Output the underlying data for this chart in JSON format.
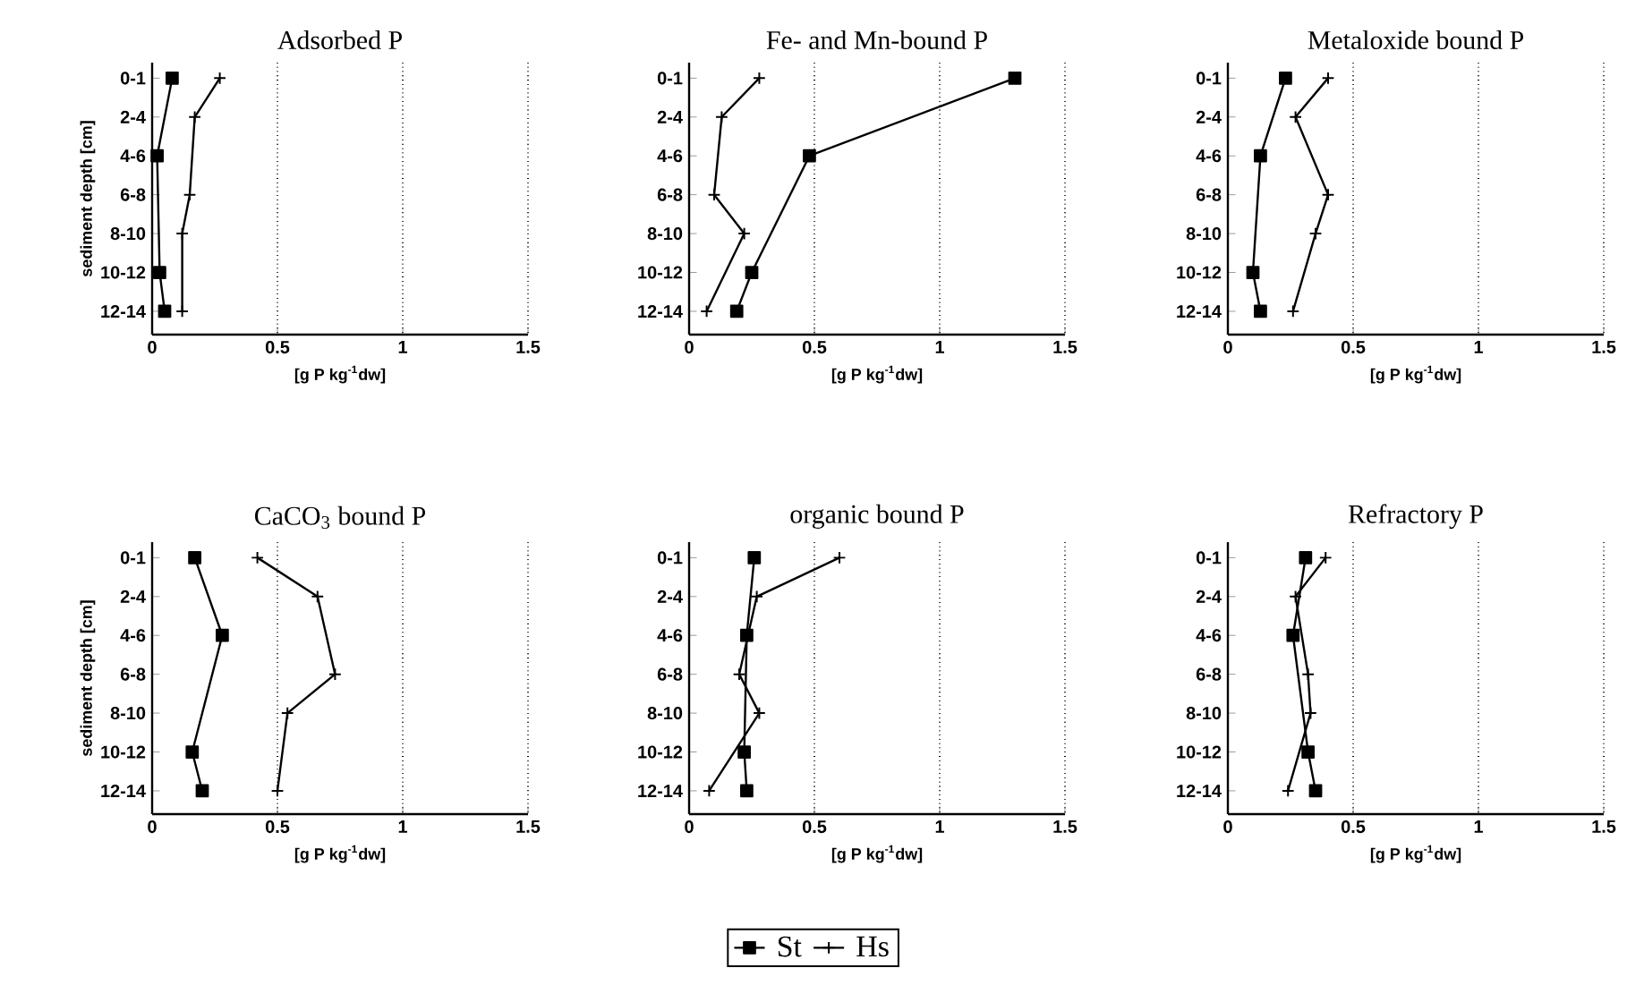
{
  "chart_data": [
    {
      "type": "line",
      "orientation": "horizontal",
      "title": "Adsorbed P",
      "xlabel": "[g P kg$^{-1}$dw]",
      "ylabel": "sediment depth [cm]",
      "categories": [
        "0-1",
        "2-4",
        "4-6",
        "6-8",
        "8-10",
        "10-12",
        "12-14"
      ],
      "xlim": [
        0,
        1.5
      ],
      "xticks": [
        0,
        0.5,
        1,
        1.5
      ],
      "grid": "x",
      "legend": false,
      "series": [
        {
          "color": "#000000",
          "marker": "square",
          "values": [
            0.08,
            null,
            0.02,
            null,
            null,
            0.03,
            0.05
          ]
        },
        {
          "color": "#000000",
          "marker": "cross",
          "values": [
            0.27,
            0.17,
            null,
            0.15,
            0.12,
            null,
            0.12
          ]
        }
      ]
    },
    {
      "type": "line",
      "orientation": "horizontal",
      "title": "Fe- and Mn-bound P",
      "xlabel": "[g P kg$^{-1}$dw]",
      "categories": [
        "0-1",
        "2-4",
        "4-6",
        "6-8",
        "8-10",
        "10-12",
        "12-14"
      ],
      "xlim": [
        0,
        1.5
      ],
      "xticks": [
        0,
        0.5,
        1,
        1.5
      ],
      "grid": "x",
      "legend": false,
      "series": [
        {
          "color": "#000000",
          "marker": "square",
          "values": [
            1.3,
            null,
            0.48,
            null,
            null,
            0.25,
            0.19
          ]
        },
        {
          "color": "#000000",
          "marker": "cross",
          "values": [
            0.28,
            0.13,
            null,
            0.1,
            0.22,
            null,
            0.07
          ]
        }
      ]
    },
    {
      "type": "line",
      "orientation": "horizontal",
      "title": "Metaloxide bound P",
      "xlabel": "[g P kg$^{-1}$dw]",
      "categories": [
        "0-1",
        "2-4",
        "4-6",
        "6-8",
        "8-10",
        "10-12",
        "12-14"
      ],
      "xlim": [
        0,
        1.5
      ],
      "xticks": [
        0,
        0.5,
        1,
        1.5
      ],
      "grid": "x",
      "legend": false,
      "series": [
        {
          "color": "#000000",
          "marker": "square",
          "values": [
            0.23,
            null,
            0.13,
            null,
            null,
            0.1,
            0.13
          ]
        },
        {
          "color": "#000000",
          "marker": "cross",
          "values": [
            0.4,
            0.27,
            null,
            0.4,
            0.35,
            null,
            0.26
          ]
        }
      ]
    },
    {
      "type": "line",
      "orientation": "horizontal",
      "title": "CaCO$_{3}$ bound P",
      "xlabel": "[g P kg$^{-1}$dw]",
      "ylabel": "sediment depth [cm]",
      "categories": [
        "0-1",
        "2-4",
        "4-6",
        "6-8",
        "8-10",
        "10-12",
        "12-14"
      ],
      "xlim": [
        0,
        1.5
      ],
      "xticks": [
        0,
        0.5,
        1,
        1.5
      ],
      "grid": "x",
      "legend": false,
      "series": [
        {
          "color": "#000000",
          "marker": "square",
          "values": [
            0.17,
            null,
            0.28,
            null,
            null,
            0.16,
            0.2
          ]
        },
        {
          "color": "#000000",
          "marker": "cross",
          "values": [
            0.42,
            0.66,
            null,
            0.73,
            0.54,
            null,
            0.5
          ]
        }
      ]
    },
    {
      "type": "line",
      "orientation": "horizontal",
      "title": "organic bound P",
      "xlabel": "[g P kg$^{-1}$dw]",
      "categories": [
        "0-1",
        "2-4",
        "4-6",
        "6-8",
        "8-10",
        "10-12",
        "12-14"
      ],
      "xlim": [
        0,
        1.5
      ],
      "xticks": [
        0,
        0.5,
        1,
        1.5
      ],
      "grid": "x",
      "legend": "bottom",
      "series": [
        {
          "name": "St",
          "color": "#000000",
          "marker": "square",
          "values": [
            0.26,
            null,
            0.23,
            null,
            null,
            0.22,
            0.23
          ]
        },
        {
          "name": "Hs",
          "color": "#000000",
          "marker": "cross",
          "values": [
            0.6,
            0.27,
            null,
            0.2,
            0.28,
            null,
            0.08
          ]
        }
      ]
    },
    {
      "type": "line",
      "orientation": "horizontal",
      "title": "Refractory P",
      "xlabel": "[g P kg$^{-1}$dw]",
      "categories": [
        "0-1",
        "2-4",
        "4-6",
        "6-8",
        "8-10",
        "10-12",
        "12-14"
      ],
      "xlim": [
        0,
        1.5
      ],
      "xticks": [
        0,
        0.5,
        1,
        1.5
      ],
      "grid": "x",
      "legend": false,
      "series": [
        {
          "color": "#000000",
          "marker": "square",
          "values": [
            0.31,
            null,
            0.26,
            null,
            null,
            0.32,
            0.35
          ]
        },
        {
          "color": "#000000",
          "marker": "cross",
          "values": [
            0.39,
            0.27,
            null,
            0.32,
            0.33,
            null,
            0.24
          ]
        }
      ]
    }
  ]
}
